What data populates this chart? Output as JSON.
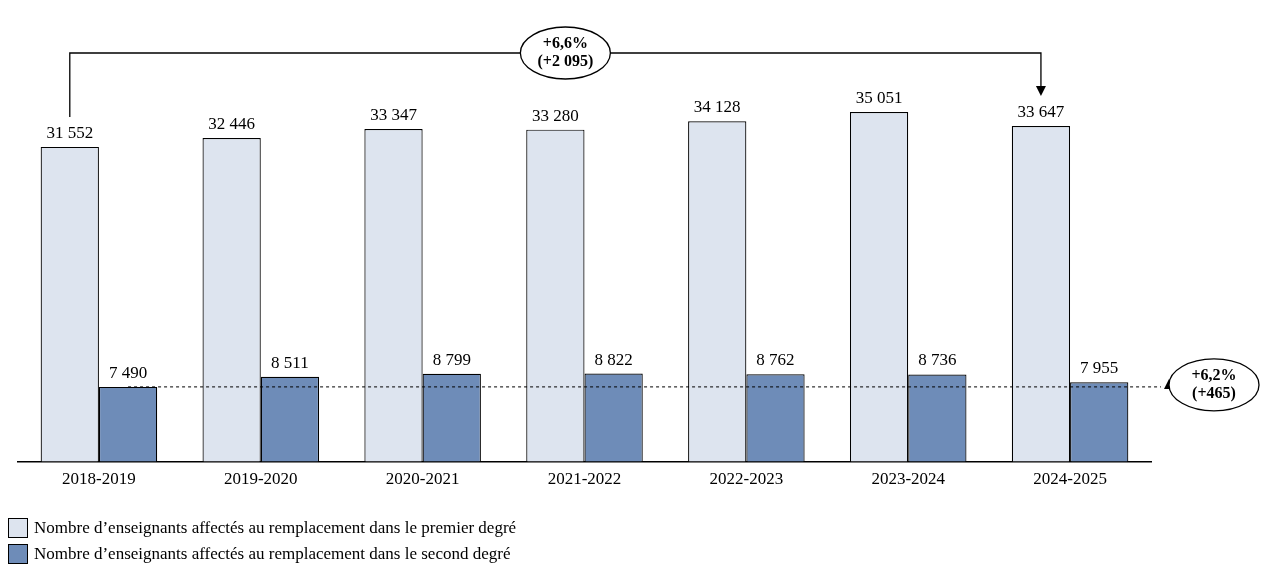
{
  "chart_data": {
    "type": "bar",
    "categories": [
      "2018-2019",
      "2019-2020",
      "2020-2021",
      "2021-2022",
      "2022-2023",
      "2023-2024",
      "2024-2025"
    ],
    "series": [
      {
        "name": "Nombre d’enseignants affectés au remplacement dans le premier degré",
        "color": "#dde4ef",
        "values": [
          31552,
          32446,
          33347,
          33280,
          34128,
          35051,
          33647
        ],
        "value_labels": [
          "31 552",
          "32 446",
          "33 347",
          "33 280",
          "34 128",
          "35 051",
          "33 647"
        ]
      },
      {
        "name": "Nombre d’enseignants affectés au remplacement dans le second degré",
        "color": "#6e8cb8",
        "values": [
          7490,
          8511,
          8799,
          8822,
          8762,
          8736,
          7955
        ],
        "value_labels": [
          "7 490",
          "8 511",
          "8 799",
          "8 822",
          "8 762",
          "8 736",
          "7 955"
        ]
      }
    ],
    "annotations": [
      "+6,6% (+2 095)",
      "+6,2% (+465)"
    ],
    "ref_lines": [
      {
        "axis": "y",
        "value": 7490,
        "line_style": "dashed",
        "color": "#000000"
      }
    ],
    "legend": "bottom left",
    "tick_labels": "x",
    "grid": false
  }
}
